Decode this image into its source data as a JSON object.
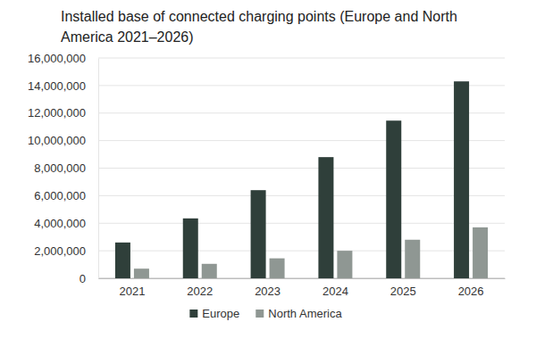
{
  "chart_data": {
    "type": "bar",
    "title": "Installed base of connected charging points (Europe and North America 2021–2026)",
    "categories": [
      "2021",
      "2022",
      "2023",
      "2024",
      "2025",
      "2026"
    ],
    "series": [
      {
        "name": "Europe",
        "color": "#2f3f3a",
        "values": [
          2600000,
          4350000,
          6400000,
          8800000,
          11450000,
          14300000
        ]
      },
      {
        "name": "North America",
        "color": "#8f9793",
        "values": [
          700000,
          1050000,
          1450000,
          2000000,
          2800000,
          3700000
        ]
      }
    ],
    "ylim": [
      0,
      16000000
    ],
    "yticks": [
      0,
      {
        "value": 2000000,
        "label": "2,000,000"
      },
      {
        "value": 4000000,
        "label": "4,000,000"
      },
      {
        "value": 6000000,
        "label": "6,000,000"
      },
      {
        "value": 8000000,
        "label": "8,000,000"
      },
      {
        "value": 10000000,
        "label": "10,000,000"
      },
      {
        "value": 12000000,
        "label": "12,000,000"
      },
      {
        "value": 14000000,
        "label": "14,000,000"
      },
      {
        "value": 16000000,
        "label": "16,000,000"
      }
    ],
    "grid": true,
    "legend": "bottom"
  }
}
